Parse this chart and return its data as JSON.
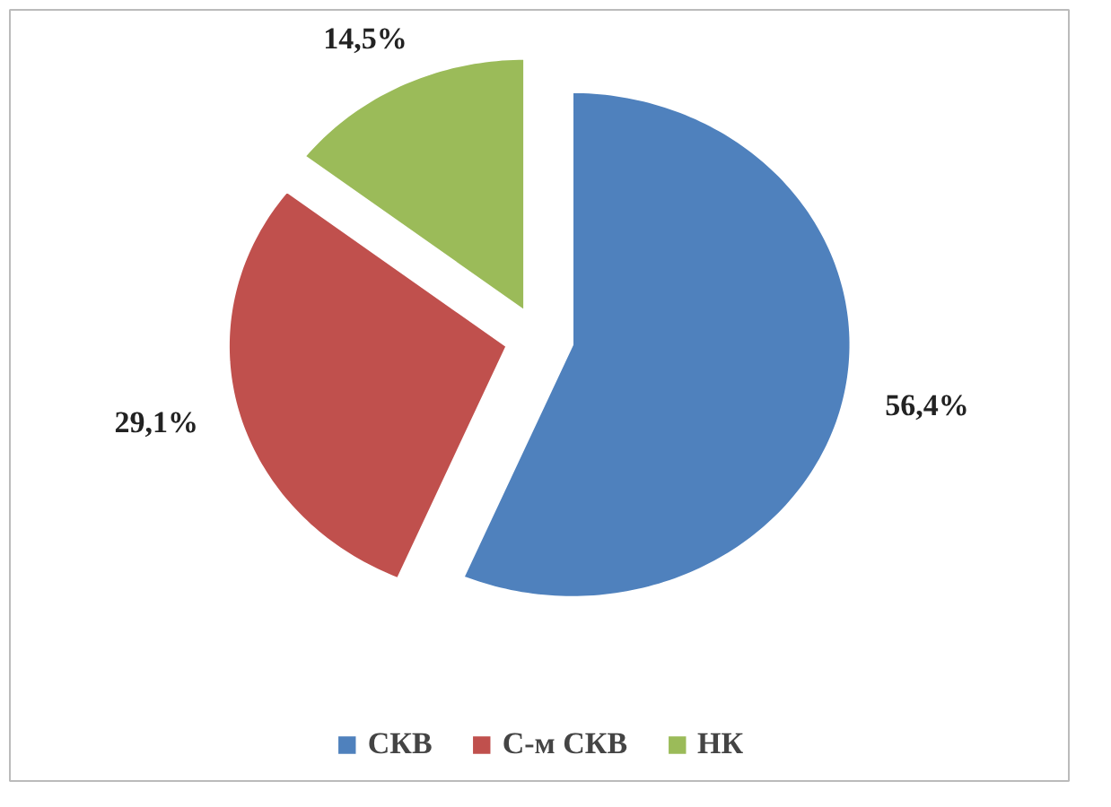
{
  "chart_data": {
    "type": "pie",
    "categories": [
      "СКВ",
      "С-м СКВ",
      "НК"
    ],
    "values": [
      56.4,
      29.1,
      14.5
    ],
    "colors": [
      "#4f81bd",
      "#c0504d",
      "#9bbb59"
    ],
    "value_labels": [
      "56,4%",
      "29,1%",
      "14,5%"
    ],
    "legend": "bottom"
  }
}
